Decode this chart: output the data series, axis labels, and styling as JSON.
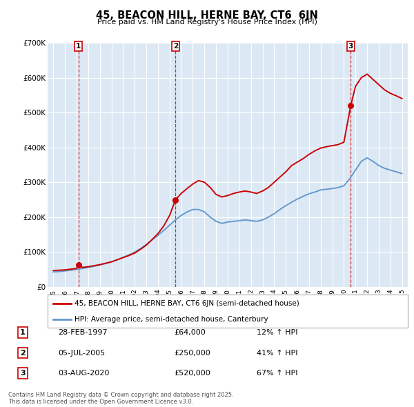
{
  "title": "45, BEACON HILL, HERNE BAY, CT6  6JN",
  "subtitle": "Price paid vs. HM Land Registry's House Price Index (HPI)",
  "background_color": "#dce9f5",
  "plot_bg_color": "#dce9f5",
  "sale_dates": [
    1997.15,
    2005.51,
    2020.59
  ],
  "sale_prices": [
    64000,
    250000,
    520000
  ],
  "sale_labels": [
    "1",
    "2",
    "3"
  ],
  "sale_date_strs": [
    "28-FEB-1997",
    "05-JUL-2005",
    "03-AUG-2020"
  ],
  "sale_price_strs": [
    "£64,000",
    "£250,000",
    "£520,000"
  ],
  "sale_hpi_strs": [
    "12% ↑ HPI",
    "41% ↑ HPI",
    "67% ↑ HPI"
  ],
  "red_line_color": "#cc0000",
  "blue_line_color": "#6699cc",
  "legend_red_label": "45, BEACON HILL, HERNE BAY, CT6 6JN (semi-detached house)",
  "legend_blue_label": "HPI: Average price, semi-detached house, Canterbury",
  "footer": "Contains HM Land Registry data © Crown copyright and database right 2025.\nThis data is licensed under the Open Government Licence v3.0.",
  "ylim": [
    0,
    700000
  ],
  "yticks": [
    0,
    100000,
    200000,
    300000,
    400000,
    500000,
    600000,
    700000
  ],
  "ytick_labels": [
    "£0",
    "£100K",
    "£200K",
    "£300K",
    "£400K",
    "£500K",
    "£600K",
    "£700K"
  ],
  "xlim": [
    1994.5,
    2025.5
  ],
  "xticks": [
    1995,
    1996,
    1997,
    1998,
    1999,
    2000,
    2001,
    2002,
    2003,
    2004,
    2005,
    2006,
    2007,
    2008,
    2009,
    2010,
    2011,
    2012,
    2013,
    2014,
    2015,
    2016,
    2017,
    2018,
    2019,
    2020,
    2021,
    2022,
    2023,
    2024,
    2025
  ],
  "red_x": [
    1995.0,
    1995.5,
    1996.0,
    1996.5,
    1997.0,
    1997.15,
    1997.5,
    1998.0,
    1998.5,
    1999.0,
    1999.5,
    2000.0,
    2000.5,
    2001.0,
    2001.5,
    2002.0,
    2002.5,
    2003.0,
    2003.5,
    2004.0,
    2004.5,
    2005.0,
    2005.51,
    2006.0,
    2006.5,
    2007.0,
    2007.5,
    2008.0,
    2008.5,
    2009.0,
    2009.5,
    2010.0,
    2010.5,
    2011.0,
    2011.5,
    2012.0,
    2012.5,
    2013.0,
    2013.5,
    2014.0,
    2014.5,
    2015.0,
    2015.5,
    2016.0,
    2016.5,
    2017.0,
    2017.5,
    2018.0,
    2018.5,
    2019.0,
    2019.5,
    2020.0,
    2020.59,
    2021.0,
    2021.5,
    2022.0,
    2022.5,
    2023.0,
    2023.5,
    2024.0,
    2024.5,
    2025.0
  ],
  "red_y": [
    47000,
    48000,
    49000,
    51000,
    53000,
    64000,
    56000,
    58000,
    61000,
    64000,
    68000,
    72000,
    78000,
    84000,
    90000,
    97000,
    108000,
    120000,
    136000,
    153000,
    175000,
    205000,
    250000,
    268000,
    282000,
    295000,
    305000,
    300000,
    285000,
    265000,
    258000,
    262000,
    268000,
    272000,
    275000,
    272000,
    268000,
    275000,
    285000,
    300000,
    315000,
    330000,
    348000,
    358000,
    368000,
    380000,
    390000,
    398000,
    402000,
    405000,
    408000,
    415000,
    520000,
    575000,
    600000,
    610000,
    595000,
    580000,
    565000,
    555000,
    548000,
    540000
  ],
  "blue_x": [
    1995.0,
    1995.5,
    1996.0,
    1996.5,
    1997.0,
    1997.5,
    1998.0,
    1998.5,
    1999.0,
    1999.5,
    2000.0,
    2000.5,
    2001.0,
    2001.5,
    2002.0,
    2002.5,
    2003.0,
    2003.5,
    2004.0,
    2004.5,
    2005.0,
    2005.5,
    2006.0,
    2006.5,
    2007.0,
    2007.5,
    2008.0,
    2008.5,
    2009.0,
    2009.5,
    2010.0,
    2010.5,
    2011.0,
    2011.5,
    2012.0,
    2012.5,
    2013.0,
    2013.5,
    2014.0,
    2014.5,
    2015.0,
    2015.5,
    2016.0,
    2016.5,
    2017.0,
    2017.5,
    2018.0,
    2018.5,
    2019.0,
    2019.5,
    2020.0,
    2020.5,
    2021.0,
    2021.5,
    2022.0,
    2022.5,
    2023.0,
    2023.5,
    2024.0,
    2024.5,
    2025.0
  ],
  "blue_y": [
    43000,
    44000,
    46000,
    48000,
    50000,
    53000,
    56000,
    59000,
    63000,
    67000,
    72000,
    78000,
    85000,
    92000,
    100000,
    110000,
    122000,
    135000,
    148000,
    162000,
    177000,
    192000,
    205000,
    215000,
    222000,
    222000,
    215000,
    200000,
    188000,
    182000,
    186000,
    188000,
    190000,
    192000,
    190000,
    188000,
    192000,
    200000,
    210000,
    222000,
    233000,
    243000,
    252000,
    260000,
    267000,
    272000,
    278000,
    280000,
    282000,
    285000,
    290000,
    310000,
    335000,
    360000,
    370000,
    360000,
    348000,
    340000,
    335000,
    330000,
    325000
  ]
}
